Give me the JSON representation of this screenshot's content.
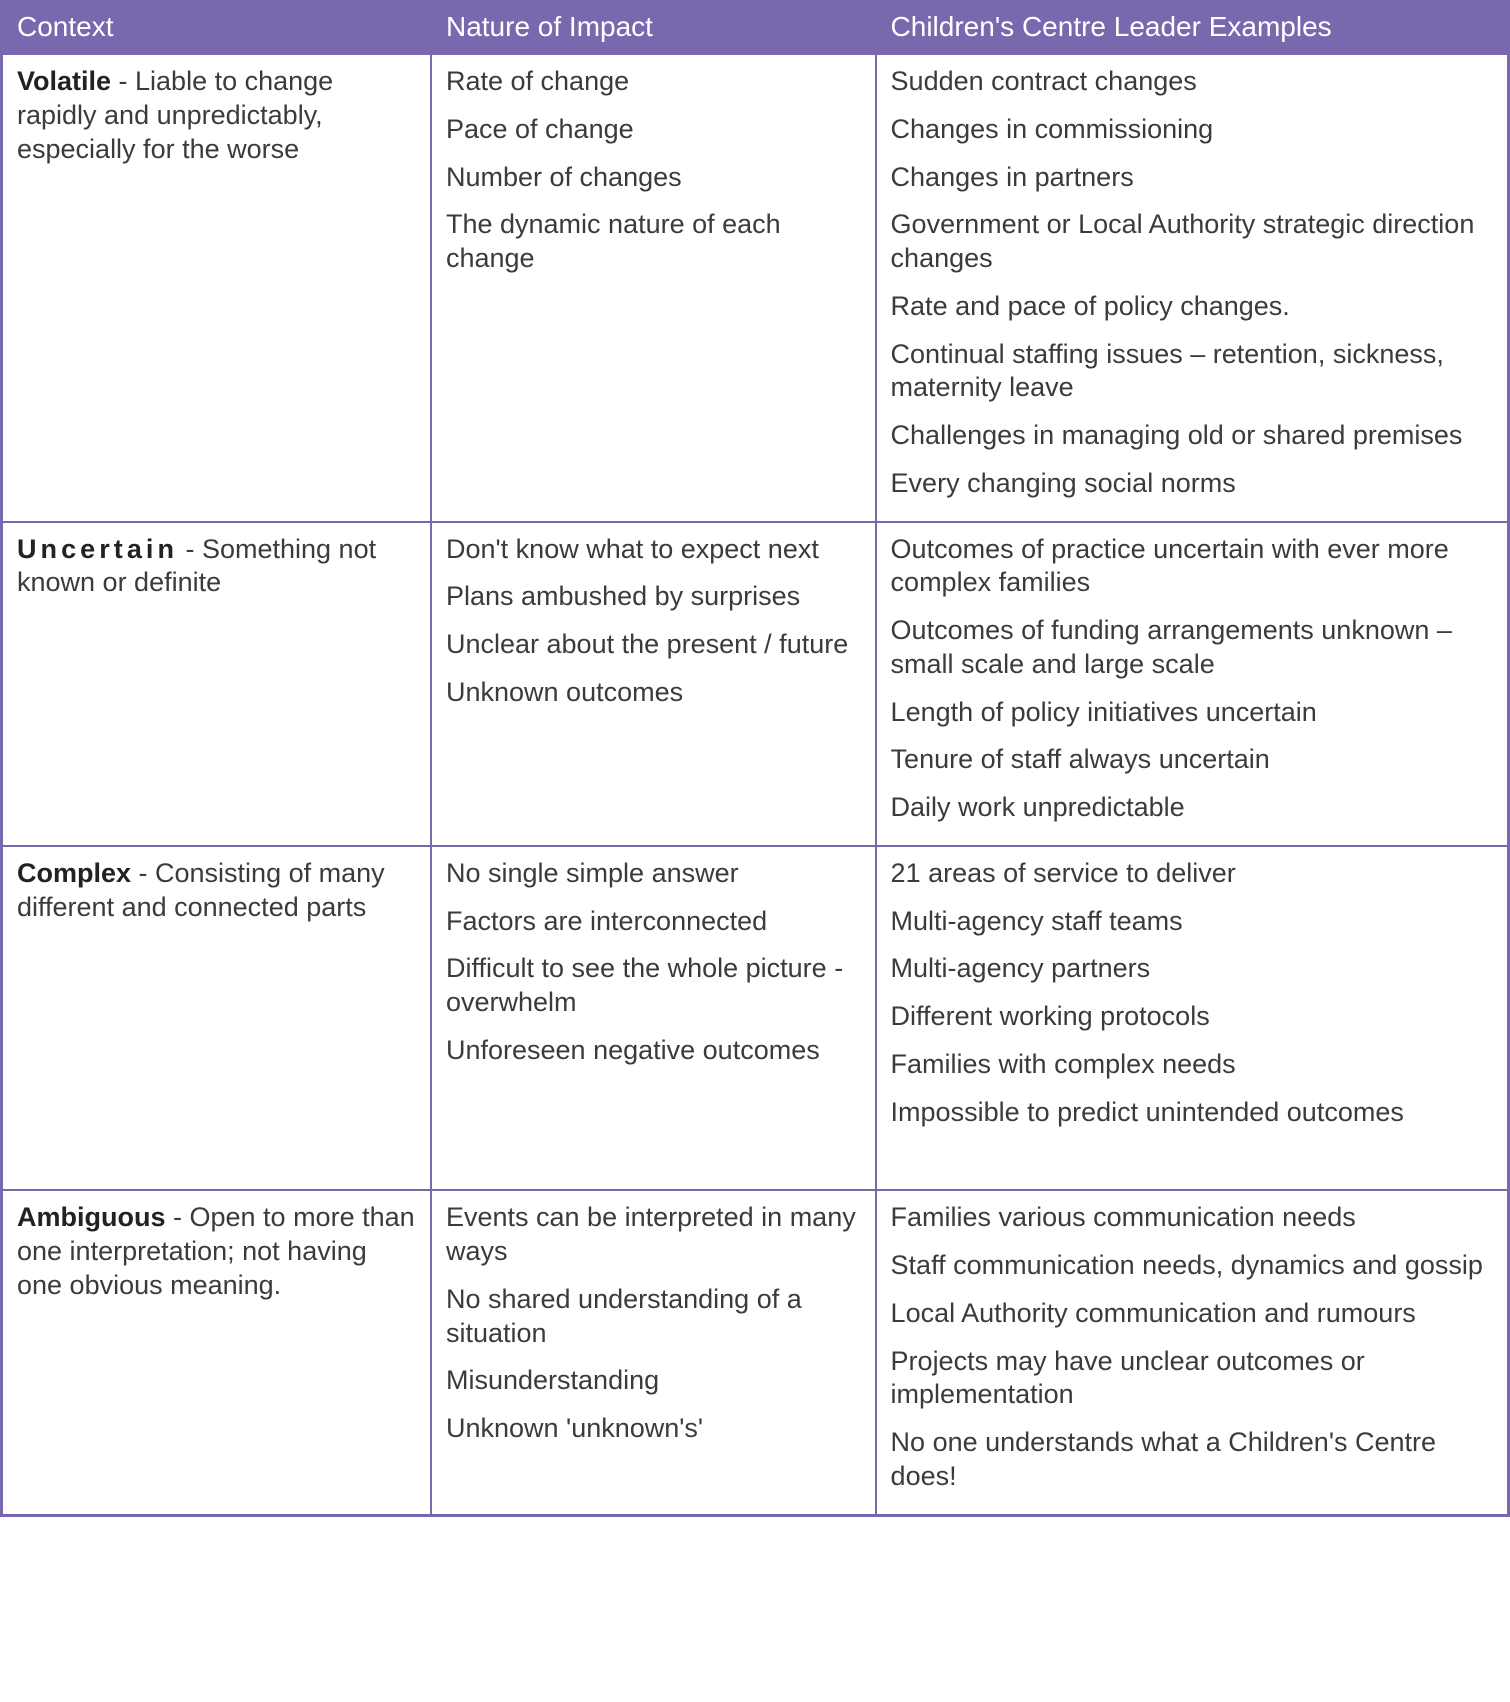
{
  "table": {
    "header_bg": "#7a68ae",
    "header_text_color": "#ffffff",
    "border_color": "#7a68ae",
    "body_text_color": "#3b3b3b",
    "font_family": "Trebuchet MS",
    "header_fontsize_pt": 21,
    "body_fontsize_pt": 20,
    "columns": [
      {
        "key": "context",
        "label": "Context",
        "width_pct": 28.5
      },
      {
        "key": "impact",
        "label": "Nature of Impact",
        "width_pct": 29.5
      },
      {
        "key": "examples",
        "label": "Children's Centre Leader Examples",
        "width_pct": 42
      }
    ],
    "rows": [
      {
        "context_term": "Volatile",
        "context_desc": " - Liable to change rapidly and unpredictably, especially for the worse",
        "impact": [
          "Rate of change",
          "Pace of change",
          "Number of changes",
          "The dynamic nature of each change"
        ],
        "examples": [
          "Sudden contract changes",
          "Changes in commissioning",
          "Changes in partners",
          "Government or Local Authority strategic direction changes",
          "Rate and pace of policy changes.",
          "Continual staffing issues – retention, sickness, maternity leave",
          "Challenges in managing old or shared premises",
          "Every changing social norms"
        ]
      },
      {
        "context_term": "Uncertain",
        "context_desc": " - Something not known or definite",
        "impact": [
          "Don't know what to expect next",
          "Plans ambushed by surprises",
          "Unclear about the present / future",
          "Unknown outcomes"
        ],
        "impact_justify_indices": [
          1
        ],
        "examples": [
          "Outcomes of practice uncertain with ever more complex families",
          "Outcomes of funding arrangements unknown – small scale and large scale",
          "Length of policy initiatives uncertain",
          "Tenure of staff always uncertain",
          "Daily work unpredictable"
        ]
      },
      {
        "context_term": "Complex",
        "context_desc": " - Consisting of many different and connected parts",
        "impact": [
          "No single simple answer",
          "Factors are interconnected",
          "Difficult to see the whole picture - overwhelm",
          "Unforeseen negative outcomes"
        ],
        "examples": [
          "21 areas of service to deliver",
          "Multi-agency staff teams",
          "Multi-agency partners",
          "Different working protocols",
          "Families with complex needs",
          "Impossible to predict unintended outcomes"
        ],
        "examples_justify_indices": [
          5
        ],
        "extra_bottom_pad": true
      },
      {
        "context_term": "Ambiguous",
        "context_desc": " - Open to more than one interpretation; not having one obvious meaning.",
        "impact": [
          "Events can be interpreted in many ways",
          "No shared understanding of a situation",
          "Misunderstanding",
          "Unknown 'unknown's'"
        ],
        "examples": [
          "Families various communication needs",
          "Staff communication needs, dynamics and gossip",
          "Local Authority communication and rumours",
          "Projects may have unclear outcomes or implementation",
          "No one understands what a Children's Centre does!"
        ]
      }
    ]
  }
}
